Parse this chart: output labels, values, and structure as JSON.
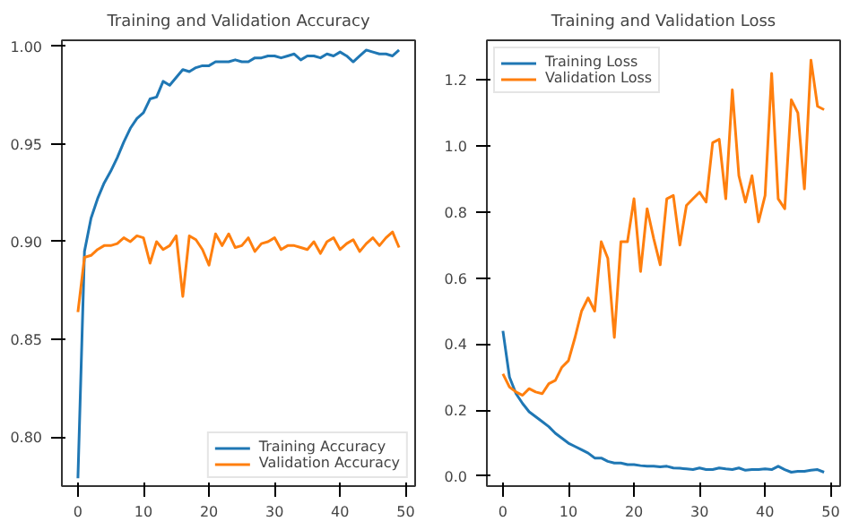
{
  "chart_data": [
    {
      "type": "line",
      "title": "Training and Validation Accuracy",
      "x": [
        0,
        1,
        2,
        3,
        4,
        5,
        6,
        7,
        8,
        9,
        10,
        11,
        12,
        13,
        14,
        15,
        16,
        17,
        18,
        19,
        20,
        21,
        22,
        23,
        24,
        25,
        26,
        27,
        28,
        29,
        30,
        31,
        32,
        33,
        34,
        35,
        36,
        37,
        38,
        39,
        40,
        41,
        42,
        43,
        44,
        45,
        46,
        47,
        48,
        49
      ],
      "series": [
        {
          "name": "Training Accuracy",
          "color": "#1f77b4",
          "values": [
            0.779,
            0.895,
            0.912,
            0.922,
            0.93,
            0.936,
            0.943,
            0.951,
            0.958,
            0.963,
            0.966,
            0.973,
            0.974,
            0.982,
            0.98,
            0.984,
            0.988,
            0.987,
            0.989,
            0.99,
            0.99,
            0.992,
            0.992,
            0.992,
            0.993,
            0.992,
            0.992,
            0.994,
            0.994,
            0.995,
            0.995,
            0.994,
            0.995,
            0.996,
            0.993,
            0.995,
            0.995,
            0.994,
            0.996,
            0.995,
            0.997,
            0.995,
            0.992,
            0.995,
            0.998,
            0.997,
            0.996,
            0.996,
            0.995,
            0.998
          ]
        },
        {
          "name": "Validation Accuracy",
          "color": "#ff7f0e",
          "values": [
            0.864,
            0.892,
            0.893,
            0.896,
            0.898,
            0.898,
            0.899,
            0.902,
            0.9,
            0.903,
            0.902,
            0.889,
            0.9,
            0.896,
            0.898,
            0.903,
            0.872,
            0.903,
            0.901,
            0.896,
            0.888,
            0.904,
            0.898,
            0.904,
            0.897,
            0.898,
            0.902,
            0.895,
            0.899,
            0.9,
            0.902,
            0.896,
            0.898,
            0.898,
            0.897,
            0.896,
            0.9,
            0.894,
            0.9,
            0.902,
            0.896,
            0.899,
            0.901,
            0.895,
            0.899,
            0.902,
            0.898,
            0.902,
            0.905,
            0.897
          ]
        }
      ],
      "xlim": [
        -2.45,
        51.45
      ],
      "xticks": [
        0,
        10,
        20,
        30,
        40,
        50
      ],
      "ylim": [
        0.775,
        1.003
      ],
      "yticks": [
        {
          "value": 0.8,
          "label": "0.80"
        },
        {
          "value": 0.85,
          "label": "0.85"
        },
        {
          "value": 0.9,
          "label": "0.90"
        },
        {
          "value": 0.95,
          "label": "0.95"
        },
        {
          "value": 1.0,
          "label": "1.00"
        }
      ],
      "legend": "bottom right",
      "grid": false
    },
    {
      "type": "line",
      "title": "Training and Validation Loss",
      "x": [
        0,
        1,
        2,
        3,
        4,
        5,
        6,
        7,
        8,
        9,
        10,
        11,
        12,
        13,
        14,
        15,
        16,
        17,
        18,
        19,
        20,
        21,
        22,
        23,
        24,
        25,
        26,
        27,
        28,
        29,
        30,
        31,
        32,
        33,
        34,
        35,
        36,
        37,
        38,
        39,
        40,
        41,
        42,
        43,
        44,
        45,
        46,
        47,
        48,
        49
      ],
      "series": [
        {
          "name": "Training Loss",
          "color": "#1f77b4",
          "values": [
            0.44,
            0.3,
            0.25,
            0.22,
            0.195,
            0.18,
            0.165,
            0.15,
            0.13,
            0.115,
            0.1,
            0.09,
            0.08,
            0.07,
            0.055,
            0.055,
            0.045,
            0.04,
            0.04,
            0.035,
            0.035,
            0.032,
            0.03,
            0.03,
            0.028,
            0.03,
            0.025,
            0.024,
            0.022,
            0.02,
            0.025,
            0.02,
            0.02,
            0.025,
            0.022,
            0.02,
            0.025,
            0.018,
            0.02,
            0.02,
            0.022,
            0.02,
            0.03,
            0.02,
            0.012,
            0.015,
            0.015,
            0.018,
            0.02,
            0.012
          ]
        },
        {
          "name": "Validation Loss",
          "color": "#ff7f0e",
          "values": [
            0.31,
            0.27,
            0.255,
            0.245,
            0.265,
            0.255,
            0.25,
            0.28,
            0.29,
            0.33,
            0.35,
            0.42,
            0.5,
            0.54,
            0.5,
            0.71,
            0.66,
            0.42,
            0.71,
            0.71,
            0.84,
            0.62,
            0.81,
            0.72,
            0.64,
            0.84,
            0.85,
            0.7,
            0.82,
            0.84,
            0.86,
            0.83,
            1.01,
            1.02,
            0.84,
            1.17,
            0.91,
            0.83,
            0.91,
            0.77,
            0.85,
            1.22,
            0.84,
            0.81,
            1.14,
            1.1,
            0.87,
            1.26,
            1.12,
            1.11
          ]
        }
      ],
      "xlim": [
        -2.45,
        51.45
      ],
      "xticks": [
        0,
        10,
        20,
        30,
        40,
        50
      ],
      "ylim": [
        -0.03,
        1.32
      ],
      "yticks": [
        {
          "value": 0.0,
          "label": "0.0"
        },
        {
          "value": 0.2,
          "label": "0.2"
        },
        {
          "value": 0.4,
          "label": "0.4"
        },
        {
          "value": 0.6,
          "label": "0.6"
        },
        {
          "value": 0.8,
          "label": "0.8"
        },
        {
          "value": 1.0,
          "label": "1.0"
        },
        {
          "value": 1.2,
          "label": "1.2"
        }
      ],
      "legend": "top left",
      "grid": false
    }
  ]
}
